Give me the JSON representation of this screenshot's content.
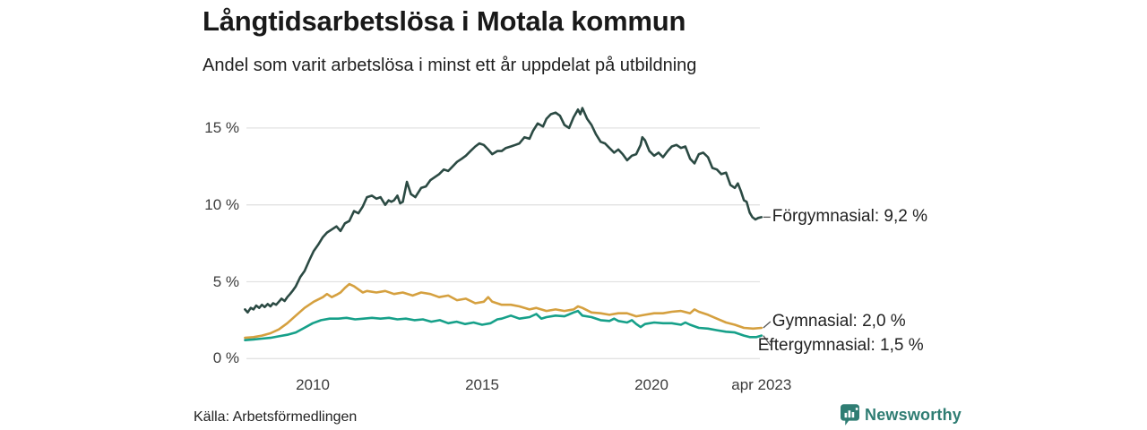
{
  "header": {
    "title": "Långtidsarbetslösa i Motala kommun",
    "subtitle": "Andel som varit arbetslösa i minst ett år uppdelat på utbildning"
  },
  "footer": {
    "source": "Källa: Arbetsförmedlingen",
    "brand": "Newsworthy"
  },
  "colors": {
    "forgymnasial": "#2b4a43",
    "gymnasial": "#d5a03f",
    "eftergymnasial": "#16a089",
    "gridline": "#e2e2e2",
    "tick_text": "#3c3c3c",
    "label_text": "#222222",
    "brand_teal": "#2f7d73",
    "connector": "#555555"
  },
  "chart_data": {
    "type": "line",
    "title": "Långtidsarbetslösa i Motala kommun",
    "subtitle": "Andel som varit arbetslösa i minst ett år uppdelat på utbildning",
    "grid": true,
    "legend_position": "right-of-line-ends",
    "x_axis": {
      "range": [
        2008.0,
        2023.25
      ],
      "ticks": [
        {
          "value": 2010,
          "label": "2010"
        },
        {
          "value": 2015,
          "label": "2015"
        },
        {
          "value": 2020,
          "label": "2020"
        },
        {
          "value": 2023.25,
          "label": "apr 2023"
        }
      ]
    },
    "y_axis": {
      "range": [
        0,
        16.5
      ],
      "unit": "%",
      "ticks": [
        {
          "value": 15,
          "label": "15 %"
        },
        {
          "value": 10,
          "label": "10 %"
        },
        {
          "value": 5,
          "label": "5 %"
        },
        {
          "value": 0,
          "label": "0 %"
        }
      ]
    },
    "series": [
      {
        "name": "Förgymnasial",
        "end_label": "Förgymnasial: 9,2 %",
        "end_value": "9,2 %",
        "color": "#2b4a43",
        "label_dx": 12,
        "label_dy": 0,
        "points": [
          [
            2008.0,
            3.2
          ],
          [
            2008.08,
            3.0
          ],
          [
            2008.17,
            3.3
          ],
          [
            2008.25,
            3.2
          ],
          [
            2008.33,
            3.45
          ],
          [
            2008.42,
            3.3
          ],
          [
            2008.5,
            3.5
          ],
          [
            2008.58,
            3.35
          ],
          [
            2008.67,
            3.55
          ],
          [
            2008.75,
            3.4
          ],
          [
            2008.83,
            3.6
          ],
          [
            2008.92,
            3.5
          ],
          [
            2009.0,
            3.7
          ],
          [
            2009.08,
            3.9
          ],
          [
            2009.17,
            3.75
          ],
          [
            2009.25,
            4.0
          ],
          [
            2009.33,
            4.2
          ],
          [
            2009.42,
            4.45
          ],
          [
            2009.5,
            4.7
          ],
          [
            2009.63,
            5.3
          ],
          [
            2009.76,
            5.7
          ],
          [
            2009.9,
            6.4
          ],
          [
            2010.03,
            7.0
          ],
          [
            2010.16,
            7.4
          ],
          [
            2010.3,
            7.9
          ],
          [
            2010.42,
            8.2
          ],
          [
            2010.56,
            8.4
          ],
          [
            2010.7,
            8.6
          ],
          [
            2010.82,
            8.3
          ],
          [
            2010.95,
            8.8
          ],
          [
            2011.08,
            8.95
          ],
          [
            2011.22,
            9.6
          ],
          [
            2011.35,
            9.45
          ],
          [
            2011.48,
            9.9
          ],
          [
            2011.6,
            10.5
          ],
          [
            2011.75,
            10.6
          ],
          [
            2011.88,
            10.4
          ],
          [
            2012.0,
            10.5
          ],
          [
            2012.14,
            10.0
          ],
          [
            2012.24,
            10.3
          ],
          [
            2012.32,
            10.2
          ],
          [
            2012.4,
            10.3
          ],
          [
            2012.5,
            10.6
          ],
          [
            2012.58,
            10.1
          ],
          [
            2012.66,
            10.2
          ],
          [
            2012.78,
            11.5
          ],
          [
            2012.9,
            10.7
          ],
          [
            2013.03,
            10.5
          ],
          [
            2013.2,
            11.1
          ],
          [
            2013.34,
            11.2
          ],
          [
            2013.47,
            11.6
          ],
          [
            2013.6,
            11.8
          ],
          [
            2013.73,
            12.0
          ],
          [
            2013.87,
            12.3
          ],
          [
            2014.0,
            12.2
          ],
          [
            2014.13,
            12.5
          ],
          [
            2014.26,
            12.8
          ],
          [
            2014.4,
            13.0
          ],
          [
            2014.52,
            13.2
          ],
          [
            2014.66,
            13.5
          ],
          [
            2014.8,
            13.8
          ],
          [
            2014.92,
            14.0
          ],
          [
            2015.05,
            13.9
          ],
          [
            2015.18,
            13.6
          ],
          [
            2015.3,
            13.3
          ],
          [
            2015.45,
            13.5
          ],
          [
            2015.58,
            13.5
          ],
          [
            2015.7,
            13.7
          ],
          [
            2015.85,
            13.8
          ],
          [
            2015.98,
            13.9
          ],
          [
            2016.1,
            14.0
          ],
          [
            2016.25,
            14.4
          ],
          [
            2016.4,
            14.3
          ],
          [
            2016.5,
            14.8
          ],
          [
            2016.64,
            15.3
          ],
          [
            2016.8,
            15.1
          ],
          [
            2016.9,
            15.6
          ],
          [
            2017.03,
            15.9
          ],
          [
            2017.17,
            16.0
          ],
          [
            2017.3,
            15.8
          ],
          [
            2017.43,
            15.2
          ],
          [
            2017.57,
            15.0
          ],
          [
            2017.7,
            15.7
          ],
          [
            2017.83,
            16.2
          ],
          [
            2017.9,
            15.9
          ],
          [
            2017.96,
            16.3
          ],
          [
            2018.1,
            15.6
          ],
          [
            2018.23,
            15.2
          ],
          [
            2018.36,
            14.6
          ],
          [
            2018.5,
            14.1
          ],
          [
            2018.63,
            14.0
          ],
          [
            2018.76,
            13.7
          ],
          [
            2018.9,
            13.4
          ],
          [
            2019.02,
            13.6
          ],
          [
            2019.15,
            13.3
          ],
          [
            2019.28,
            12.9
          ],
          [
            2019.42,
            13.2
          ],
          [
            2019.55,
            13.3
          ],
          [
            2019.68,
            13.9
          ],
          [
            2019.73,
            14.4
          ],
          [
            2019.81,
            14.2
          ],
          [
            2019.94,
            13.5
          ],
          [
            2020.08,
            13.2
          ],
          [
            2020.21,
            13.4
          ],
          [
            2020.34,
            13.1
          ],
          [
            2020.48,
            13.5
          ],
          [
            2020.6,
            13.8
          ],
          [
            2020.74,
            13.9
          ],
          [
            2020.87,
            13.7
          ],
          [
            2021.0,
            13.8
          ],
          [
            2021.14,
            13.0
          ],
          [
            2021.27,
            12.7
          ],
          [
            2021.4,
            13.3
          ],
          [
            2021.53,
            13.4
          ],
          [
            2021.67,
            13.1
          ],
          [
            2021.8,
            12.4
          ],
          [
            2021.93,
            12.3
          ],
          [
            2022.06,
            12.0
          ],
          [
            2022.2,
            12.1
          ],
          [
            2022.33,
            11.3
          ],
          [
            2022.46,
            11.1
          ],
          [
            2022.55,
            11.4
          ],
          [
            2022.64,
            10.9
          ],
          [
            2022.73,
            10.3
          ],
          [
            2022.81,
            10.2
          ],
          [
            2022.9,
            9.5
          ],
          [
            2022.98,
            9.2
          ],
          [
            2023.07,
            9.05
          ],
          [
            2023.15,
            9.15
          ],
          [
            2023.25,
            9.2
          ]
        ]
      },
      {
        "name": "Gymnasial",
        "end_label": "Gymnasial: 2,0 %",
        "end_value": "2,0 %",
        "color": "#d5a03f",
        "label_dx": 12,
        "label_dy": -7,
        "points": [
          [
            2008.0,
            1.35
          ],
          [
            2008.25,
            1.4
          ],
          [
            2008.5,
            1.5
          ],
          [
            2008.75,
            1.65
          ],
          [
            2009.0,
            1.9
          ],
          [
            2009.25,
            2.3
          ],
          [
            2009.5,
            2.8
          ],
          [
            2009.76,
            3.3
          ],
          [
            2010.03,
            3.7
          ],
          [
            2010.3,
            4.0
          ],
          [
            2010.42,
            4.2
          ],
          [
            2010.56,
            4.0
          ],
          [
            2010.7,
            4.15
          ],
          [
            2010.82,
            4.3
          ],
          [
            2010.95,
            4.6
          ],
          [
            2011.08,
            4.85
          ],
          [
            2011.22,
            4.7
          ],
          [
            2011.35,
            4.5
          ],
          [
            2011.48,
            4.3
          ],
          [
            2011.6,
            4.4
          ],
          [
            2011.88,
            4.3
          ],
          [
            2012.14,
            4.4
          ],
          [
            2012.4,
            4.2
          ],
          [
            2012.66,
            4.3
          ],
          [
            2012.95,
            4.1
          ],
          [
            2013.2,
            4.3
          ],
          [
            2013.47,
            4.2
          ],
          [
            2013.73,
            4.0
          ],
          [
            2014.0,
            4.1
          ],
          [
            2014.26,
            3.8
          ],
          [
            2014.52,
            3.9
          ],
          [
            2014.8,
            3.6
          ],
          [
            2015.05,
            3.7
          ],
          [
            2015.18,
            4.0
          ],
          [
            2015.3,
            3.7
          ],
          [
            2015.58,
            3.5
          ],
          [
            2015.85,
            3.5
          ],
          [
            2016.1,
            3.4
          ],
          [
            2016.4,
            3.2
          ],
          [
            2016.6,
            3.3
          ],
          [
            2016.9,
            3.1
          ],
          [
            2017.17,
            3.2
          ],
          [
            2017.43,
            3.1
          ],
          [
            2017.7,
            3.2
          ],
          [
            2017.83,
            3.4
          ],
          [
            2017.96,
            3.3
          ],
          [
            2018.23,
            3.0
          ],
          [
            2018.5,
            2.95
          ],
          [
            2018.76,
            2.85
          ],
          [
            2019.02,
            2.95
          ],
          [
            2019.28,
            2.95
          ],
          [
            2019.55,
            2.75
          ],
          [
            2019.81,
            2.85
          ],
          [
            2020.08,
            2.95
          ],
          [
            2020.34,
            2.95
          ],
          [
            2020.6,
            3.05
          ],
          [
            2020.87,
            3.1
          ],
          [
            2021.14,
            2.95
          ],
          [
            2021.27,
            3.2
          ],
          [
            2021.4,
            3.05
          ],
          [
            2021.67,
            2.85
          ],
          [
            2021.93,
            2.6
          ],
          [
            2022.2,
            2.35
          ],
          [
            2022.46,
            2.2
          ],
          [
            2022.73,
            2.0
          ],
          [
            2023.0,
            1.95
          ],
          [
            2023.25,
            2.0
          ]
        ]
      },
      {
        "name": "Eftergymnasial",
        "end_label": "Eftergymnasial: 1,5 %",
        "end_value": "1,5 %",
        "color": "#16a089",
        "label_dx": -4,
        "label_dy": 11,
        "points": [
          [
            2008.0,
            1.2
          ],
          [
            2008.25,
            1.25
          ],
          [
            2008.5,
            1.3
          ],
          [
            2008.75,
            1.35
          ],
          [
            2009.0,
            1.45
          ],
          [
            2009.25,
            1.55
          ],
          [
            2009.5,
            1.7
          ],
          [
            2009.75,
            2.0
          ],
          [
            2010.0,
            2.3
          ],
          [
            2010.25,
            2.5
          ],
          [
            2010.5,
            2.6
          ],
          [
            2010.75,
            2.6
          ],
          [
            2011.0,
            2.65
          ],
          [
            2011.25,
            2.55
          ],
          [
            2011.5,
            2.6
          ],
          [
            2011.75,
            2.65
          ],
          [
            2012.0,
            2.6
          ],
          [
            2012.25,
            2.65
          ],
          [
            2012.5,
            2.55
          ],
          [
            2012.75,
            2.6
          ],
          [
            2013.0,
            2.5
          ],
          [
            2013.25,
            2.55
          ],
          [
            2013.5,
            2.4
          ],
          [
            2013.75,
            2.5
          ],
          [
            2014.0,
            2.3
          ],
          [
            2014.25,
            2.4
          ],
          [
            2014.5,
            2.25
          ],
          [
            2014.75,
            2.35
          ],
          [
            2015.0,
            2.2
          ],
          [
            2015.25,
            2.3
          ],
          [
            2015.45,
            2.55
          ],
          [
            2015.58,
            2.6
          ],
          [
            2015.85,
            2.8
          ],
          [
            2016.1,
            2.6
          ],
          [
            2016.4,
            2.7
          ],
          [
            2016.6,
            2.9
          ],
          [
            2016.75,
            2.6
          ],
          [
            2016.9,
            2.7
          ],
          [
            2017.17,
            2.8
          ],
          [
            2017.43,
            2.75
          ],
          [
            2017.7,
            3.0
          ],
          [
            2017.83,
            3.1
          ],
          [
            2017.96,
            2.8
          ],
          [
            2018.23,
            2.7
          ],
          [
            2018.5,
            2.5
          ],
          [
            2018.76,
            2.45
          ],
          [
            2018.9,
            2.6
          ],
          [
            2019.02,
            2.45
          ],
          [
            2019.28,
            2.35
          ],
          [
            2019.42,
            2.5
          ],
          [
            2019.55,
            2.25
          ],
          [
            2019.68,
            2.05
          ],
          [
            2019.81,
            2.25
          ],
          [
            2020.08,
            2.35
          ],
          [
            2020.34,
            2.3
          ],
          [
            2020.6,
            2.3
          ],
          [
            2020.87,
            2.2
          ],
          [
            2021.0,
            2.35
          ],
          [
            2021.14,
            2.2
          ],
          [
            2021.4,
            2.0
          ],
          [
            2021.67,
            1.95
          ],
          [
            2021.93,
            1.85
          ],
          [
            2022.2,
            1.75
          ],
          [
            2022.46,
            1.7
          ],
          [
            2022.73,
            1.5
          ],
          [
            2022.9,
            1.4
          ],
          [
            2023.1,
            1.4
          ],
          [
            2023.25,
            1.5
          ]
        ]
      }
    ]
  }
}
